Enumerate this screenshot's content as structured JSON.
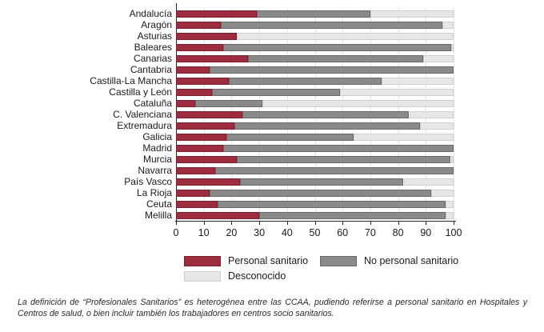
{
  "chart_data": {
    "type": "bar",
    "orientation": "horizontal",
    "stacked": true,
    "title": "",
    "xlabel": "",
    "ylabel": "",
    "xlim": [
      0,
      100
    ],
    "x_ticks": [
      0,
      10,
      20,
      30,
      40,
      50,
      60,
      70,
      80,
      90,
      100
    ],
    "grid": "vertical",
    "legend_position": "bottom",
    "categories": [
      "Andalucía",
      "Aragón",
      "Asturias",
      "Baleares",
      "Canarias",
      "Cantabria",
      "Castilla-La Mancha",
      "Castilla y León",
      "Cataluña",
      "C. Valenciana",
      "Extremadura",
      "Galicia",
      "Madrid",
      "Murcia",
      "Navarra",
      "País Vasco",
      "La Rioja",
      "Ceuta",
      "Melilla"
    ],
    "series": [
      {
        "name": "Personal sanitario",
        "color": "#9c2c3e",
        "border_color": "#7c2130",
        "values": [
          29,
          16,
          22,
          17,
          26,
          12,
          19,
          13,
          7,
          24,
          21,
          18,
          17,
          22,
          14,
          23,
          12,
          15,
          30
        ]
      },
      {
        "name": "No personal sanitario",
        "color": "#8a8a8a",
        "border_color": "#696969",
        "values": [
          41,
          80,
          0,
          82,
          63,
          88,
          55,
          46,
          24,
          60,
          67,
          46,
          83,
          77,
          86,
          59,
          80,
          82,
          67
        ]
      },
      {
        "name": "Desconocido",
        "color": "#e7e7e7",
        "border_color": "#cfcfcf",
        "values": [
          30,
          4,
          78,
          1,
          11,
          0,
          26,
          41,
          69,
          16,
          12,
          36,
          0,
          1,
          0,
          18,
          8,
          3,
          3
        ]
      }
    ]
  },
  "caption": {
    "line1": "La definición de “Profesionales Sanitarios” es heterogénea entre las CCAA, pudiendo referirse a personal sanitario en Hospitales y",
    "line2": "Centros de salud, o bien incluir también los trabajadores en centros socio sanitarios."
  }
}
